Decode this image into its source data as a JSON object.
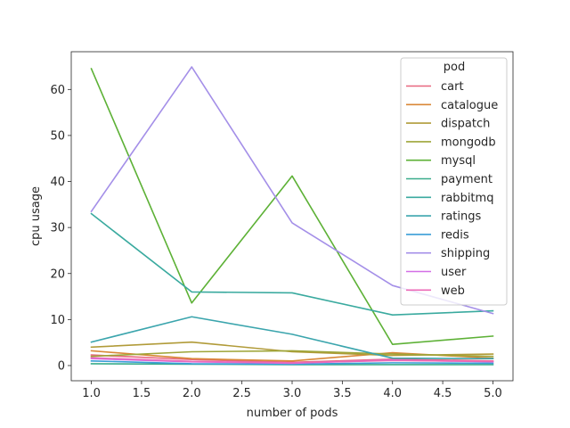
{
  "chart_data": {
    "type": "line",
    "title": "",
    "xlabel": "number of pods",
    "ylabel": "cpu usage",
    "xlim": [
      0.8,
      5.2
    ],
    "ylim": [
      -3.3,
      68.2
    ],
    "x": [
      1,
      2,
      3,
      4,
      5
    ],
    "xticks": [
      1.0,
      1.5,
      2.0,
      2.5,
      3.0,
      3.5,
      4.0,
      4.5,
      5.0
    ],
    "xtick_labels": [
      "1.0",
      "1.5",
      "2.0",
      "2.5",
      "3.0",
      "3.5",
      "4.0",
      "4.5",
      "5.0"
    ],
    "yticks": [
      0,
      10,
      20,
      30,
      40,
      50,
      60
    ],
    "ytick_labels": [
      "0",
      "10",
      "20",
      "30",
      "40",
      "50",
      "60"
    ],
    "grid": false,
    "legend": {
      "title": "pod",
      "placement": "top-right"
    },
    "series": [
      {
        "name": "cart",
        "color": "#e8677f",
        "values": [
          2.3,
          1.3,
          0.7,
          1.4,
          1.0
        ]
      },
      {
        "name": "catalogue",
        "color": "#d98737",
        "values": [
          3.2,
          1.5,
          1.0,
          2.8,
          1.6
        ]
      },
      {
        "name": "dispatch",
        "color": "#b19b39",
        "values": [
          4.0,
          5.1,
          3.0,
          2.2,
          2.5
        ]
      },
      {
        "name": "mongodb",
        "color": "#9ea539",
        "values": [
          2.0,
          3.0,
          3.2,
          2.5,
          2.0
        ]
      },
      {
        "name": "mysql",
        "color": "#5db136",
        "values": [
          64.5,
          13.6,
          41.2,
          4.6,
          6.4
        ]
      },
      {
        "name": "payment",
        "color": "#3aad8c",
        "values": [
          0.4,
          0.3,
          0.2,
          0.2,
          0.2
        ]
      },
      {
        "name": "rabbitmq",
        "color": "#3aaa9f",
        "values": [
          33.0,
          16.0,
          15.8,
          11.0,
          11.9
        ]
      },
      {
        "name": "ratings",
        "color": "#3ba5ad",
        "values": [
          5.1,
          10.6,
          6.8,
          1.6,
          1.5
        ]
      },
      {
        "name": "redis",
        "color": "#3a9ed7",
        "values": [
          1.0,
          0.4,
          0.3,
          0.6,
          0.5
        ]
      },
      {
        "name": "shipping",
        "color": "#a48fe8",
        "values": [
          33.5,
          64.9,
          31.0,
          17.4,
          11.3
        ]
      },
      {
        "name": "user",
        "color": "#d36fe6",
        "values": [
          1.5,
          0.8,
          0.5,
          1.2,
          0.8
        ]
      },
      {
        "name": "web",
        "color": "#ec6ab7",
        "values": [
          1.7,
          0.9,
          0.6,
          1.1,
          0.9
        ]
      }
    ]
  }
}
